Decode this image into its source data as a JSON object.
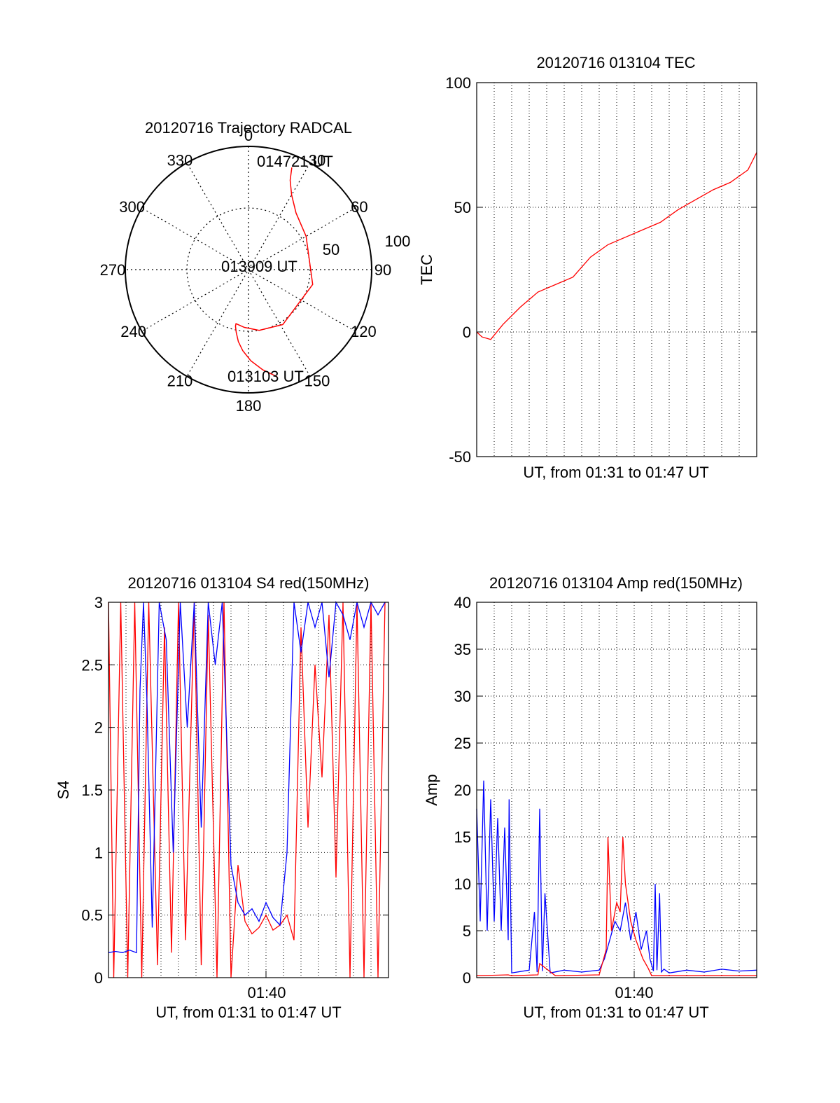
{
  "colors": {
    "red": "#ff0000",
    "blue": "#0000ff",
    "axis": "#000000"
  },
  "chart_data": [
    {
      "id": "trajectory",
      "type": "polar",
      "title": "20120716 Trajectory RADCAL",
      "angle_labels": [
        "0",
        "30",
        "60",
        "90",
        "120",
        "150",
        "180",
        "210",
        "240",
        "270",
        "300",
        "330"
      ],
      "radial_labels": [
        "50",
        "100"
      ],
      "radial_max": 100,
      "annotations": {
        "end": "014721 UT",
        "mid": "013909 UT",
        "start": "013103 UT"
      },
      "trajectory": {
        "az": [
          165.0,
          172.0,
          178.5,
          184.0,
          188.0,
          191.0,
          193.0,
          193.0,
          190.0,
          184.0,
          170.0,
          148.0,
          103.0,
          60.0,
          40.0,
          30.0,
          25.0,
          23.0
        ],
        "r": [
          90.0,
          82.0,
          74.0,
          66.0,
          59.0,
          52.0,
          47.0,
          45.0,
          45.5,
          47.0,
          50.0,
          52.5,
          53.5,
          54.0,
          60.0,
          70.0,
          80.0,
          90.0
        ]
      }
    },
    {
      "id": "tec",
      "type": "line",
      "title": "20120716 013104 TEC",
      "ylabel": "TEC",
      "xlabel": "UT, from 01:31 to 01:47 UT",
      "ylim": [
        -50,
        100
      ],
      "y_ticks": [
        "100",
        "50",
        "0",
        "-50"
      ],
      "series": [
        {
          "color": "red",
          "x": [
            0,
            0.3,
            0.8,
            1.5,
            2.5,
            3.5,
            4.5,
            5.5,
            6.5,
            7.5,
            8.5,
            9.5,
            10.5,
            11.5,
            12.0,
            12.5,
            13.5,
            14.5,
            15.5,
            16.0
          ],
          "y": [
            0,
            -2,
            -3,
            3,
            10,
            16,
            19,
            22,
            30,
            35,
            38,
            41,
            44,
            49,
            51,
            53,
            57,
            60,
            65,
            72
          ]
        }
      ]
    },
    {
      "id": "s4",
      "type": "line",
      "title": "20120716 013104 S4 red(150MHz)",
      "ylabel": "S4",
      "xlabel": "UT, from 01:31 to 01:47 UT",
      "x_tick_label": "01:40",
      "ylim": [
        0,
        3
      ],
      "y_ticks": [
        "3",
        "2.5",
        "2",
        "1.5",
        "1",
        "0.5",
        "0"
      ],
      "series": [
        {
          "color": "red",
          "x": [
            0,
            0.3,
            0.7,
            1.1,
            1.5,
            1.9,
            2.3,
            2.8,
            3.2,
            3.6,
            4.0,
            4.4,
            4.9,
            5.3,
            5.7,
            6.2,
            6.6,
            7.0,
            7.4,
            7.8,
            8.2,
            8.6,
            9.0,
            9.4,
            9.8,
            10.2,
            10.6,
            11.0,
            11.4,
            11.8,
            12.2,
            12.6,
            13.0,
            13.4,
            13.8,
            14.2,
            14.6,
            15.0,
            15.4,
            15.8
          ],
          "y": [
            3,
            0,
            3,
            0,
            3,
            0,
            3,
            0.1,
            2.8,
            0.2,
            3,
            0.3,
            3,
            0.1,
            2.9,
            0,
            3,
            0,
            0.9,
            0.45,
            0.35,
            0.4,
            0.5,
            0.38,
            0.42,
            0.5,
            0.3,
            2.8,
            1.2,
            2.5,
            1.6,
            2.9,
            0.8,
            3,
            0,
            3,
            0,
            3,
            0,
            3
          ]
        },
        {
          "color": "blue",
          "x": [
            0,
            0.4,
            0.8,
            1.2,
            1.6,
            1.8,
            2.0,
            2.2,
            2.5,
            2.9,
            3.3,
            3.7,
            4.1,
            4.5,
            4.9,
            5.3,
            5.7,
            6.1,
            6.5,
            7.0,
            7.4,
            7.8,
            8.2,
            8.6,
            9.0,
            9.4,
            9.8,
            10.2,
            10.6,
            11.0,
            11.4,
            11.8,
            12.2,
            12.6,
            13.0,
            13.4,
            13.8,
            14.2,
            14.6,
            15.0,
            15.4,
            15.8
          ],
          "y": [
            0.2,
            0.21,
            0.2,
            0.22,
            0.2,
            2.3,
            3,
            2.2,
            0.4,
            3,
            2.7,
            1.0,
            3,
            2.0,
            3,
            1.2,
            3,
            2.5,
            3,
            0.9,
            0.6,
            0.5,
            0.55,
            0.45,
            0.6,
            0.48,
            0.42,
            1.0,
            3,
            2.6,
            3,
            2.8,
            3,
            2.4,
            3,
            2.9,
            2.7,
            3,
            2.8,
            3,
            2.9,
            3
          ]
        }
      ]
    },
    {
      "id": "amp",
      "type": "line",
      "title": "20120716 013104 Amp red(150MHz)",
      "ylabel": "Amp",
      "xlabel": "UT, from 01:31 to 01:47 UT",
      "x_tick_label": "01:40",
      "ylim": [
        0,
        40
      ],
      "y_ticks": [
        "40",
        "35",
        "30",
        "25",
        "20",
        "15",
        "10",
        "5",
        "0"
      ],
      "series": [
        {
          "color": "blue",
          "x": [
            0,
            0.2,
            0.4,
            0.6,
            0.8,
            1.0,
            1.2,
            1.4,
            1.6,
            1.8,
            1.85,
            2.0,
            3.0,
            3.3,
            3.45,
            3.6,
            3.75,
            3.9,
            4.2,
            5.0,
            6.0,
            7.0,
            7.3,
            7.6,
            7.9,
            8.2,
            8.5,
            8.8,
            9.1,
            9.4,
            9.7,
            9.9,
            10.1,
            10.2,
            10.3,
            10.45,
            10.55,
            10.7,
            11.0,
            12.0,
            13.0,
            14.0,
            15.0,
            16.0
          ],
          "y": [
            18,
            6,
            21,
            5,
            19,
            6,
            17,
            5,
            16,
            4,
            19,
            0.5,
            0.8,
            7,
            0.6,
            18,
            0.7,
            9,
            0.5,
            0.8,
            0.6,
            0.8,
            2,
            4,
            6,
            5,
            8,
            4,
            7,
            3,
            5,
            2,
            0.7,
            10,
            0.8,
            9,
            0.6,
            0.9,
            0.5,
            0.8,
            0.6,
            0.9,
            0.7,
            0.8
          ]
        },
        {
          "color": "red",
          "x": [
            0,
            1.8,
            2.0,
            3.5,
            3.6,
            4.5,
            7.0,
            7.4,
            7.5,
            7.7,
            8.0,
            8.2,
            8.35,
            8.5,
            8.8,
            9.1,
            9.5,
            9.8,
            10.0,
            16.0
          ],
          "y": [
            0.2,
            0.3,
            0.2,
            0.3,
            1.5,
            0.2,
            0.3,
            3,
            15,
            5,
            8,
            7,
            15,
            10,
            6,
            4,
            2,
            1,
            0.2,
            0.2
          ]
        }
      ]
    }
  ]
}
